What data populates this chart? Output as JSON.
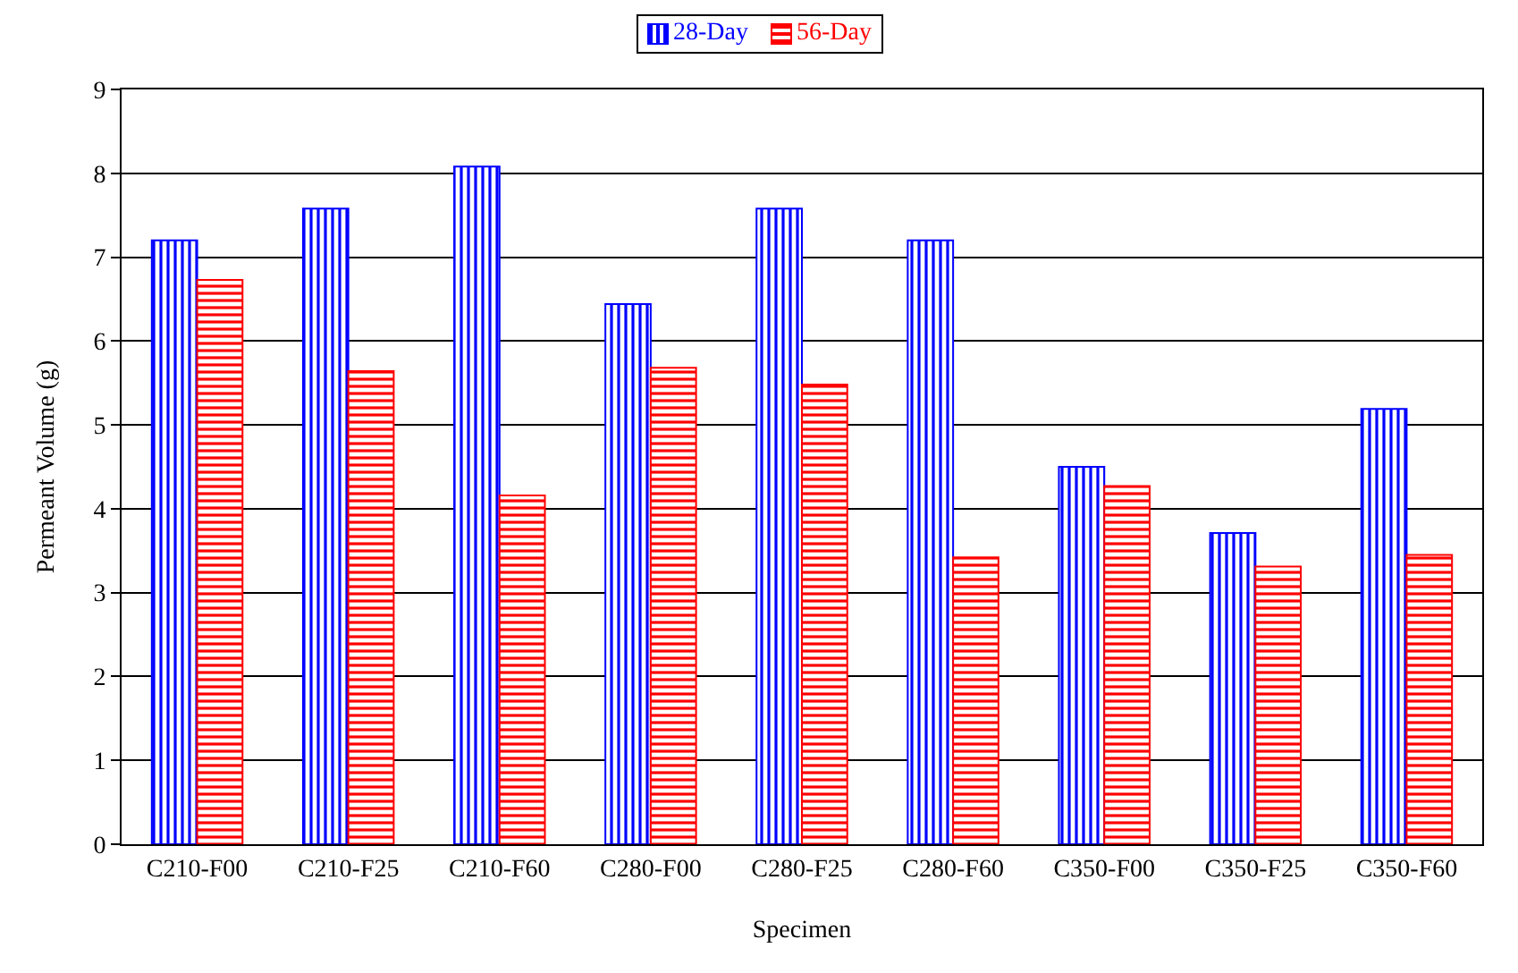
{
  "chart_data": {
    "type": "bar",
    "xlabel": "Specimen",
    "ylabel": "Permeant Volume (g)",
    "categories": [
      "C210-F00",
      "C210-F25",
      "C210-F60",
      "C280-F00",
      "C280-F25",
      "C280-F60",
      "C350-F00",
      "C350-F25",
      "C350-F60"
    ],
    "series": [
      {
        "name": "28-Day",
        "color": "#0000ff",
        "values": [
          7.2,
          7.58,
          8.08,
          6.44,
          7.58,
          7.2,
          4.5,
          3.71,
          5.19
        ]
      },
      {
        "name": "56-Day",
        "color": "#ff0000",
        "values": [
          6.73,
          5.64,
          4.16,
          5.68,
          5.48,
          3.42,
          4.27,
          3.31,
          3.45
        ]
      }
    ],
    "ylim": [
      0,
      9
    ],
    "yticks": [
      0,
      1,
      2,
      3,
      4,
      5,
      6,
      7,
      8,
      9
    ],
    "grid": "y",
    "legend": "top"
  }
}
